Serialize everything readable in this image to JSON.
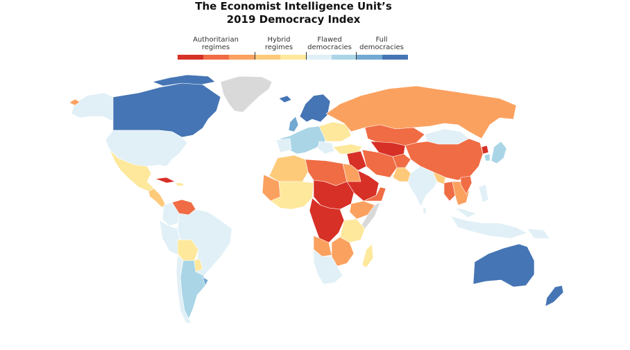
{
  "title_line1": "The Economist Intelligence Unit’s",
  "title_line2": "2019 Democracy Index",
  "legend": {
    "categories": [
      {
        "label": "Authoritarian\nregimes",
        "colors": [
          "#d73027",
          "#f06c44",
          "#fba15f"
        ]
      },
      {
        "label": "Hybrid\nregimes",
        "colors": [
          "#fdca7a",
          "#fde89c"
        ]
      },
      {
        "label": "Flawed\ndemocracies",
        "colors": [
          "#e1f0f6",
          "#a9d5e6"
        ]
      },
      {
        "label": "Full\ndemocracies",
        "colors": [
          "#72a9d3",
          "#4575b4"
        ]
      }
    ]
  },
  "colors": {
    "no_data": "#d9d9d9",
    "ocean": "#ffffff",
    "border": "#ffffff"
  }
}
